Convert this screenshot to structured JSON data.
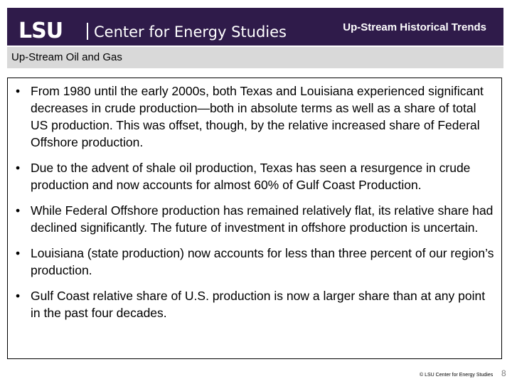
{
  "header": {
    "logo_text": "LSU",
    "organization": "Center for Energy Studies",
    "slide_title": "Up-Stream Historical Trends"
  },
  "subheader": {
    "text": "Up-Stream Oil and Gas"
  },
  "bullets": [
    "From 1980 until the early 2000s, both Texas and Louisiana experienced significant decreases in crude production—both in absolute terms as well as a share of total US production. This was offset, though, by the relative increased share of Federal Offshore production.",
    "Due to the advent of shale oil production, Texas has seen a resurgence in crude production and now accounts for almost 60% of Gulf Coast Production.",
    "While Federal Offshore production has remained relatively flat, its relative share had declined significantly. The future of investment in offshore production is uncertain.",
    "Louisiana (state production) now accounts for less than three percent of our region’s production.",
    "Gulf Coast relative share of U.S. production is now a larger share than at any point in the past four decades."
  ],
  "footer": {
    "copyright": "© LSU Center for Energy Studies",
    "page_number": "8"
  },
  "colors": {
    "header_bg": "#2f1b4a",
    "subheader_bg": "#d9d9d9"
  }
}
